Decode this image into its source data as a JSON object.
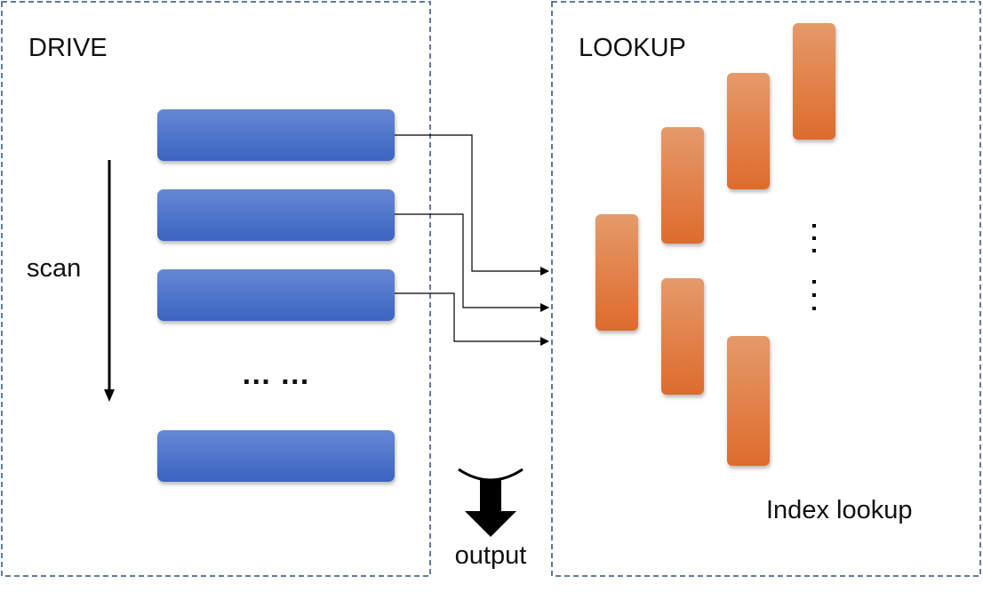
{
  "drive": {
    "title": "DRIVE",
    "scan_label": "scan",
    "ellipsis": "… …"
  },
  "lookup": {
    "title": "LOOKUP",
    "caption": "Index lookup"
  },
  "output": {
    "label": "output"
  },
  "colors": {
    "frame_border": "#2f4f7f",
    "drive_row_top": "#6688d4",
    "drive_row_bottom": "#3b64c0",
    "lookup_block_top": "#e49a6a",
    "lookup_block_bottom": "#de6b2c",
    "arrow": "#000000"
  }
}
